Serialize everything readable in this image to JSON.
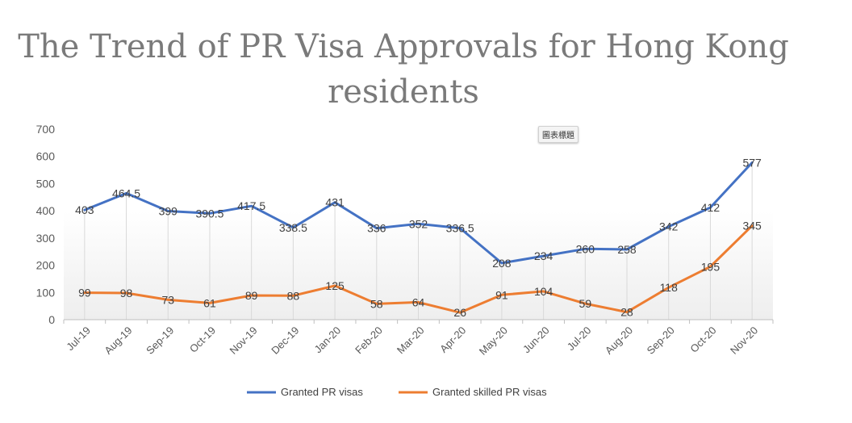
{
  "chart_data": {
    "type": "line",
    "title": "The Trend of PR Visa Approvals for Hong Kong residents",
    "overlay_tag": "圖表標題",
    "categories": [
      "Jul-19",
      "Aug-19",
      "Sep-19",
      "Oct-19",
      "Nov-19",
      "Dec-19",
      "Jan-20",
      "Feb-20",
      "Mar-20",
      "Apr-20",
      "May-20",
      "Jun-20",
      "Jul-20",
      "Aug-20",
      "Sep-20",
      "Oct-20",
      "Nov-20"
    ],
    "series": [
      {
        "name": "Granted PR visas",
        "color": "#4472c4",
        "values": [
          403,
          464.5,
          399,
          390.5,
          417.5,
          338.5,
          431,
          336,
          352,
          336.5,
          208,
          234,
          260,
          258,
          342,
          412,
          577
        ]
      },
      {
        "name": "Granted skilled PR visas",
        "color": "#ed7d31",
        "values": [
          99,
          98,
          73,
          61,
          89,
          88,
          125,
          58,
          64,
          26,
          91,
          104,
          59,
          28,
          118,
          195,
          345
        ]
      }
    ],
    "ylim": [
      0,
      700
    ],
    "yticks": [
      0,
      100,
      200,
      300,
      400,
      500,
      600,
      700
    ],
    "grid": false,
    "legend": "bottom",
    "data_labels": true
  }
}
